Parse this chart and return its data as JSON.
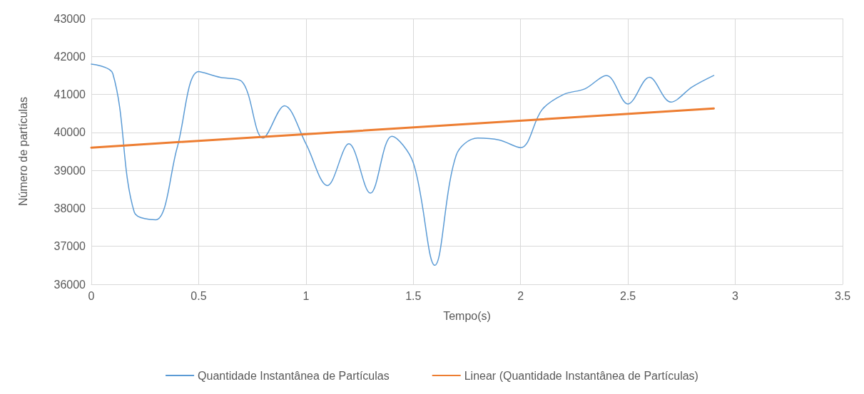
{
  "chart_data": {
    "type": "line",
    "xlabel": "Tempo(s)",
    "ylabel": "Número de partículas",
    "xlim": [
      0,
      3.5
    ],
    "xticks": [
      0,
      0.5,
      1,
      1.5,
      2,
      2.5,
      3,
      3.5
    ],
    "ylim": [
      36000,
      43000
    ],
    "yticks": [
      36000,
      37000,
      38000,
      39000,
      40000,
      41000,
      42000,
      43000
    ],
    "grid": true,
    "legend": "bottom",
    "marker": "none",
    "line_style": "solid",
    "series": [
      {
        "name": "Quantidade Instantânea de Partículas",
        "color": "#5b9bd5",
        "x": [
          0,
          0.1,
          0.2,
          0.3,
          0.4,
          0.5,
          0.6,
          0.7,
          0.8,
          0.9,
          1,
          1.1,
          1.2,
          1.3,
          1.4,
          1.5,
          1.6,
          1.7,
          1.8,
          1.9,
          2,
          2.1,
          2.2,
          2.3,
          2.4,
          2.5,
          2.6,
          2.7,
          2.8,
          2.9
        ],
        "values": [
          41800,
          41550,
          37900,
          37700,
          39600,
          41600,
          41450,
          41350,
          39850,
          40700,
          39700,
          38600,
          39700,
          38400,
          39900,
          39200,
          36500,
          39400,
          39850,
          39800,
          39600,
          40600,
          41000,
          41150,
          41500,
          40750,
          41450,
          40800,
          41200,
          41500
        ]
      },
      {
        "name": "Linear (Quantidade Instantânea de Partículas)",
        "color": "#ed7d31",
        "type": "line",
        "x": [
          0,
          2.9
        ],
        "values": [
          39600,
          40630
        ]
      }
    ]
  }
}
